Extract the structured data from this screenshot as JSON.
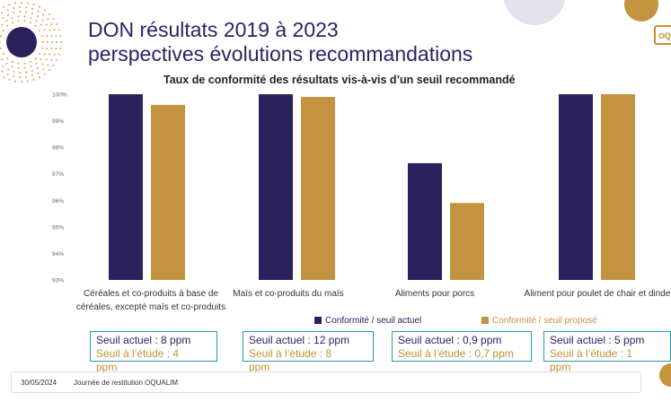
{
  "slide": {
    "title_line1": "DON résultats 2019 à 2023",
    "title_line2": "perspectives évolutions recommandations",
    "logo_text": "OQ",
    "colors": {
      "navy": "#2b215d",
      "gold": "#c49340",
      "teal": "#2a9aa6"
    }
  },
  "chart_data": {
    "type": "bar",
    "title": "Taux de conformité des résultats vis-à-vis d’un seuil recommandé",
    "categories": [
      "Céréales et co-produits à base de céréales, excepté maïs et co-produits",
      "Maïs et co-produits du maïs",
      "Aliments pour porcs",
      "Aliment pour poulet de chair et dinde"
    ],
    "series": [
      {
        "name": "Conformité / seuil actuel",
        "color": "#2b215d",
        "values": [
          100,
          100,
          97.4,
          100
        ]
      },
      {
        "name": "Conformité / seuil proposé",
        "color": "#c49340",
        "values": [
          99.6,
          99.9,
          95.9,
          100
        ]
      }
    ],
    "ylim": [
      93,
      100
    ],
    "yticks": [
      "93%",
      "94%",
      "95%",
      "96%",
      "97%",
      "98%",
      "99%",
      "100%"
    ],
    "grid": false,
    "legend_position": "bottom"
  },
  "thresholds": [
    {
      "current": "Seuil actuel : 8 ppm",
      "study": "Seuil à l’étude : 4 ppm"
    },
    {
      "current": "Seuil actuel : 12 ppm",
      "study": "Seuil à l’étude : 8 ppm"
    },
    {
      "current": "Seuil actuel : 0,9 ppm",
      "study": "Seuil à l’étude : 0,7 ppm"
    },
    {
      "current": "Seuil actuel : 5 ppm",
      "study": "Seuil à l’étude : 1 ppm"
    }
  ],
  "footer": {
    "date": "30/05/2024",
    "event": "Journée de restitution OQUALIM"
  }
}
